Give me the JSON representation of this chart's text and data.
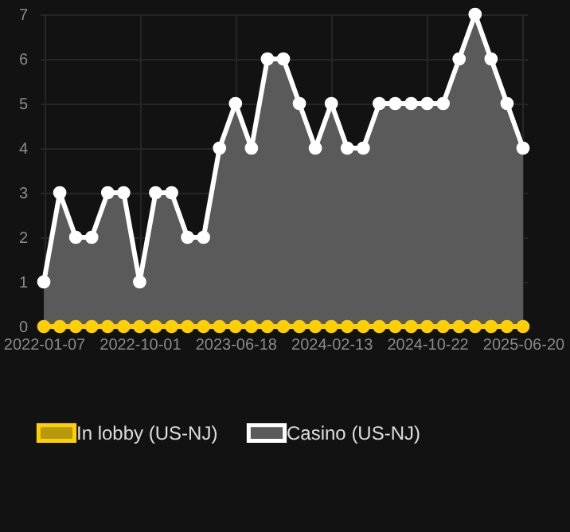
{
  "chart_data": {
    "type": "line",
    "categories": [
      "2022-01-07",
      null,
      null,
      null,
      null,
      null,
      "2022-10-01",
      null,
      null,
      null,
      null,
      null,
      "2023-06-18",
      null,
      null,
      null,
      null,
      null,
      "2024-02-13",
      null,
      null,
      null,
      null,
      null,
      "2024-10-22",
      null,
      null,
      null,
      null,
      null,
      "2025-06-20"
    ],
    "series": [
      {
        "name": "In lobby (US-NJ)",
        "color": "#ffd000",
        "values": [
          0,
          0,
          0,
          0,
          0,
          0,
          0,
          0,
          0,
          0,
          0,
          0,
          0,
          0,
          0,
          0,
          0,
          0,
          0,
          0,
          0,
          0,
          0,
          0,
          0,
          0,
          0,
          0,
          0,
          0,
          0
        ]
      },
      {
        "name": "Casino (US-NJ)",
        "type": "area",
        "color": "#5a5a5a",
        "values": [
          1,
          3,
          2,
          2,
          3,
          3,
          1,
          3,
          3,
          2,
          2,
          4,
          5,
          4,
          6,
          6,
          5,
          4,
          5,
          4,
          4,
          5,
          5,
          5,
          5,
          5,
          6,
          7,
          6,
          5,
          4
        ]
      }
    ],
    "ylim": [
      0,
      7
    ],
    "yticks": [
      0,
      1,
      2,
      3,
      4,
      5,
      6,
      7
    ],
    "grid": true,
    "legend": "bottom",
    "marker": "circle"
  }
}
